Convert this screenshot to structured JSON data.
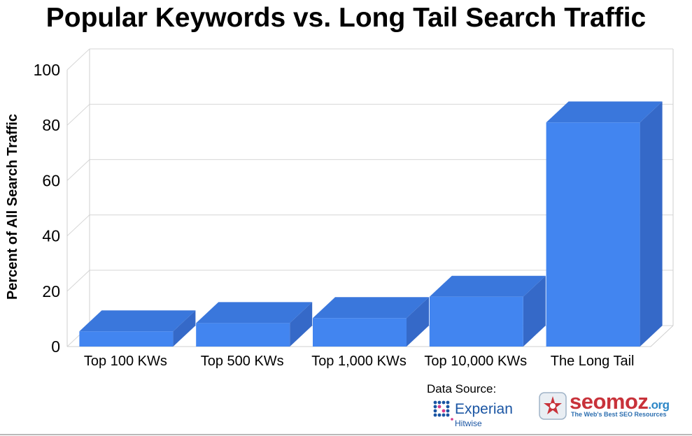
{
  "chart_data": {
    "type": "bar",
    "title": "Popular Keywords vs. Long Tail Search Traffic",
    "ylabel": "Percent of All Search Traffic",
    "xlabel": "",
    "categories": [
      "Top 100 KWs",
      "Top 500 KWs",
      "Top 1,000 KWs",
      "Top 10,000 KWs",
      "The Long Tail"
    ],
    "values": [
      5.5,
      8.5,
      10.3,
      18,
      81
    ],
    "ylim": [
      0,
      100
    ],
    "yticks": [
      "0",
      "20",
      "40",
      "60",
      "80",
      "100"
    ],
    "grid": true,
    "style": "3d",
    "colors": {
      "front": "#4285f0",
      "top": "#3a77dc",
      "side": "#3569c8"
    }
  },
  "source": {
    "label": "Data Source:",
    "experian_name": "Experian",
    "experian_sub": "Hitwise",
    "seomoz_name": "seomoz",
    "seomoz_tld": ".org",
    "seomoz_tagline": "The Web's Best SEO Resources"
  }
}
